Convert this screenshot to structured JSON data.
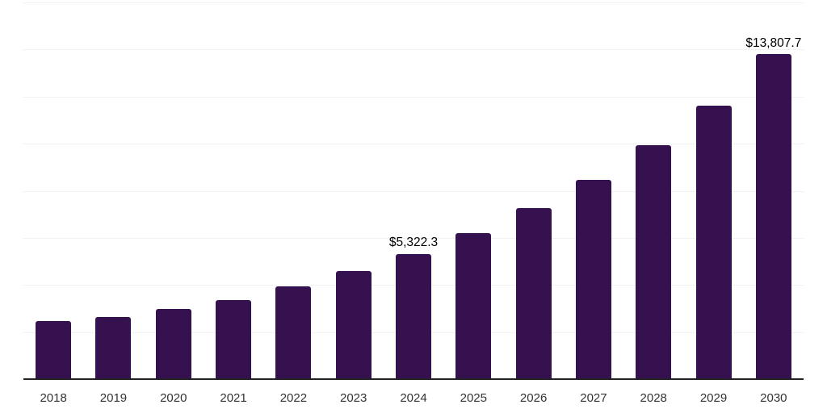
{
  "chart": {
    "bar_color": "#35114F",
    "grid_color": "#F2F2F2",
    "axis_color": "#222222",
    "tick_label_color": "#333333",
    "data_label_color": "#000000"
  },
  "chart_data": {
    "type": "bar",
    "title": "",
    "xlabel": "",
    "ylabel": "",
    "categories": [
      "2018",
      "2019",
      "2020",
      "2021",
      "2022",
      "2023",
      "2024",
      "2025",
      "2026",
      "2027",
      "2028",
      "2029",
      "2030"
    ],
    "values": [
      2480,
      2650,
      2990,
      3360,
      3930,
      4600,
      5322.3,
      6210,
      7270,
      8460,
      9920,
      11620,
      13807.7
    ],
    "data_labels": [
      "",
      "",
      "",
      "",
      "",
      "",
      "$5,322.3",
      "",
      "",
      "",
      "",
      "",
      "$13,807.7"
    ],
    "ylim": [
      0,
      16000
    ],
    "gridline_step": 2000,
    "grid": "horizontal",
    "y_axis_labels": "hidden",
    "legend_position": "none"
  }
}
